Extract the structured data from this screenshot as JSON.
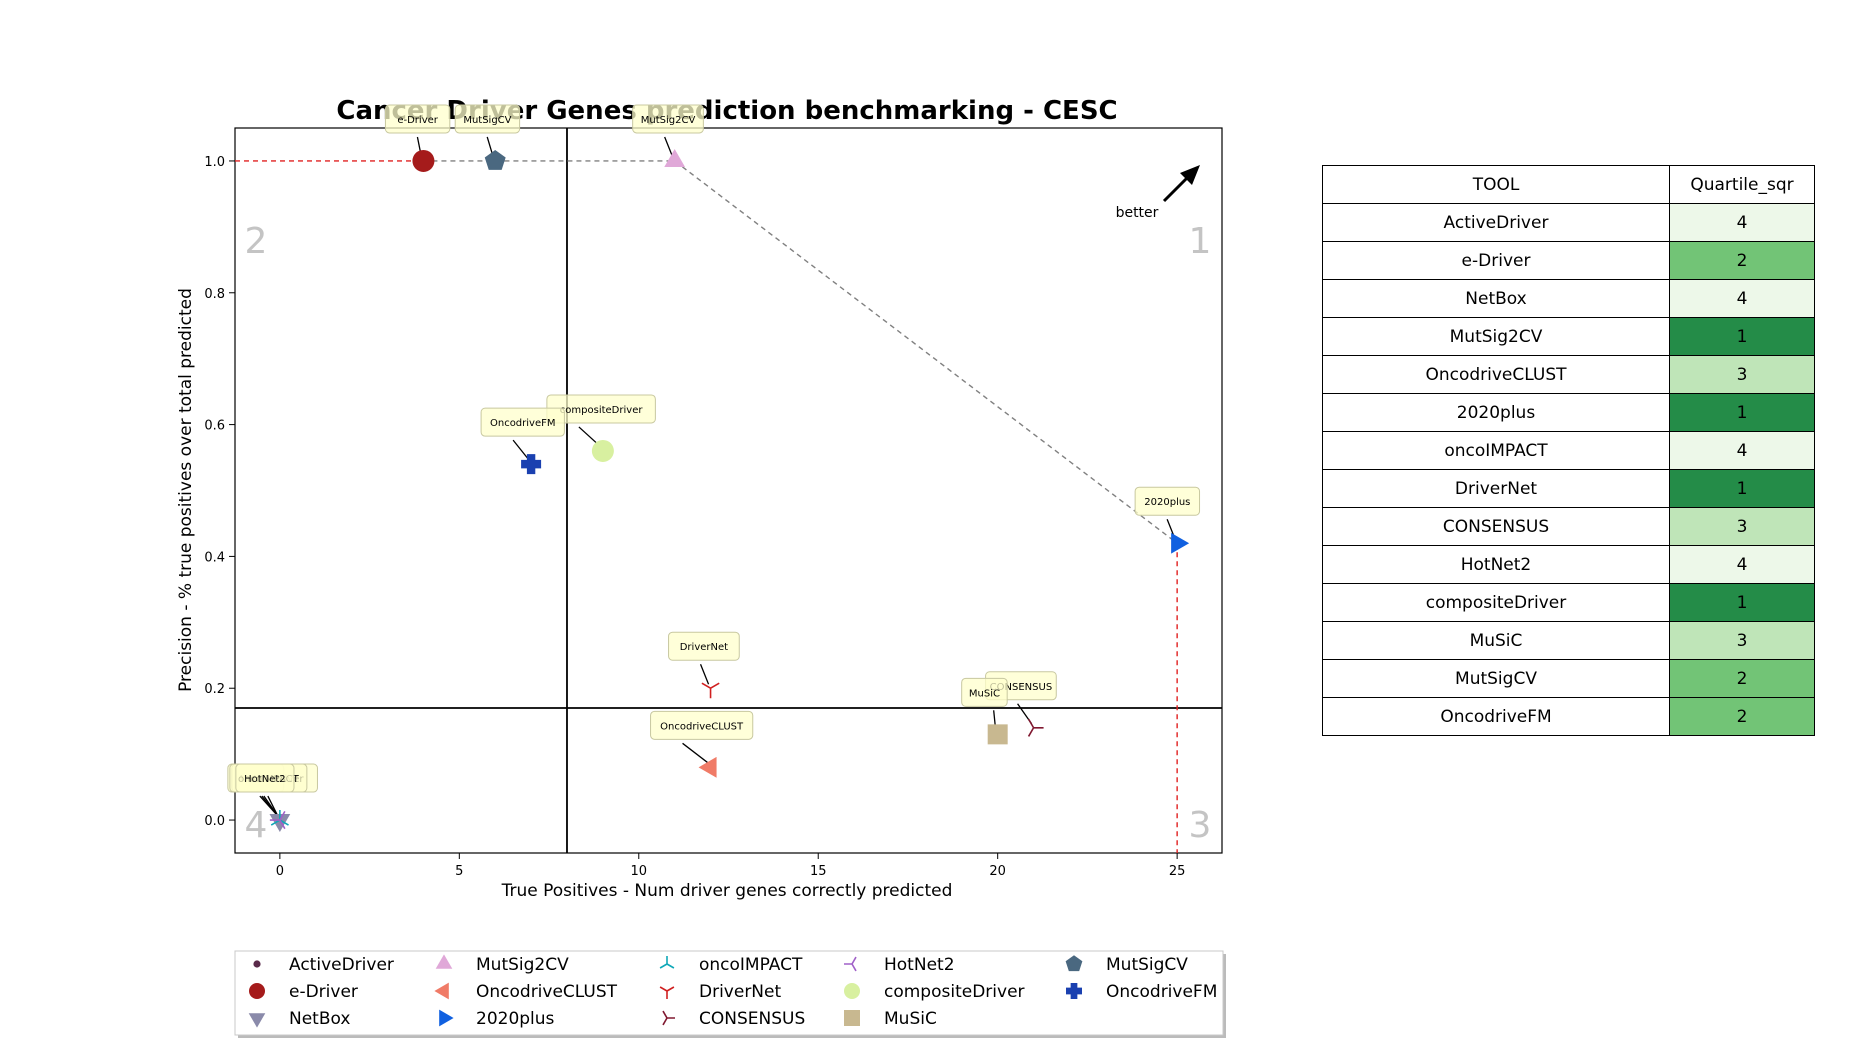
{
  "chart_data": {
    "type": "scatter",
    "title": "Cancer Driver Genes prediction benchmarking - CESC",
    "xlabel": "True Positives - Num driver genes correctly predicted",
    "ylabel": "Precision - % true positives over total predicted",
    "xlim": [
      -1.25,
      26.25
    ],
    "ylim": [
      -0.05,
      1.05
    ],
    "xticks": [
      0,
      5,
      10,
      15,
      20,
      25
    ],
    "yticks": [
      0.0,
      0.2,
      0.4,
      0.6,
      0.8,
      1.0
    ],
    "xtick_labels": [
      "0",
      "5",
      "10",
      "15",
      "20",
      "25"
    ],
    "ytick_labels": [
      "0.0",
      "0.2",
      "0.4",
      "0.6",
      "0.8",
      "1.0"
    ],
    "quadrant_lines": {
      "x": 8,
      "y": 0.17
    },
    "quadrant_labels": [
      "1",
      "2",
      "3",
      "4"
    ],
    "better_label": "better",
    "pareto_front": [
      [
        4,
        1.0
      ],
      [
        6,
        1.0
      ],
      [
        11,
        1.0
      ],
      [
        25,
        0.42
      ]
    ],
    "series": [
      {
        "name": "ActiveDriver",
        "x": 0,
        "y": 0.0,
        "marker": "dot",
        "color": "#5a2a4a"
      },
      {
        "name": "e-Driver",
        "x": 4,
        "y": 1.0,
        "marker": "circle",
        "color": "#a51b1b"
      },
      {
        "name": "NetBox",
        "x": 0,
        "y": 0.0,
        "marker": "triangle-down",
        "color": "#8a8aaa"
      },
      {
        "name": "MutSig2CV",
        "x": 11,
        "y": 1.0,
        "marker": "triangle-up",
        "color": "#e0a8d8"
      },
      {
        "name": "OncodriveCLUST",
        "x": 12,
        "y": 0.08,
        "marker": "triangle-left",
        "color": "#f07b67"
      },
      {
        "name": "2020plus",
        "x": 25,
        "y": 0.42,
        "marker": "triangle-right",
        "color": "#1060e0"
      },
      {
        "name": "oncoIMPACT",
        "x": 0,
        "y": 0.0,
        "marker": "tri-down",
        "color": "#10a8b8"
      },
      {
        "name": "DriverNet",
        "x": 12,
        "y": 0.2,
        "marker": "tri-up",
        "color": "#d02020"
      },
      {
        "name": "CONSENSUS",
        "x": 21,
        "y": 0.14,
        "marker": "tri-left",
        "color": "#801830"
      },
      {
        "name": "HotNet2",
        "x": 0,
        "y": 0.0,
        "marker": "tri-right",
        "color": "#a060c8"
      },
      {
        "name": "compositeDriver",
        "x": 9,
        "y": 0.56,
        "marker": "circle",
        "color": "#d8f0a0"
      },
      {
        "name": "MuSiC",
        "x": 20,
        "y": 0.13,
        "marker": "square",
        "color": "#c8b890"
      },
      {
        "name": "MutSigCV",
        "x": 6,
        "y": 1.0,
        "marker": "pentagon",
        "color": "#4a6880"
      },
      {
        "name": "OncodriveFM",
        "x": 7,
        "y": 0.54,
        "marker": "plus",
        "color": "#1a40b0"
      }
    ],
    "annotations": [
      {
        "text": "e-Driver",
        "x": 4,
        "y": 1.0,
        "dx": -18,
        "dy": -36
      },
      {
        "text": "MutSigCV",
        "x": 6,
        "y": 1.0,
        "dx": -20,
        "dy": -36
      },
      {
        "text": "MutSig2CV",
        "x": 11,
        "y": 1.0,
        "dx": -22,
        "dy": -36
      },
      {
        "text": "compositeDriver",
        "x": 9,
        "y": 0.56,
        "dx": -36,
        "dy": -36
      },
      {
        "text": "OncodriveFM",
        "x": 7,
        "y": 0.54,
        "dx": -30,
        "dy": -36
      },
      {
        "text": "2020plus",
        "x": 25,
        "y": 0.42,
        "dx": -22,
        "dy": -36
      },
      {
        "text": "DriverNet",
        "x": 12,
        "y": 0.2,
        "dx": -22,
        "dy": -36
      },
      {
        "text": "CONSENSUS",
        "x": 21,
        "y": 0.14,
        "dx": -28,
        "dy": -36
      },
      {
        "text": "MuSiC",
        "x": 20,
        "y": 0.13,
        "dx": -16,
        "dy": -36
      },
      {
        "text": "OncodriveCLUST",
        "x": 12,
        "y": 0.08,
        "dx": -40,
        "dy": -36
      },
      {
        "text": "ActiveDriver",
        "x": 0,
        "y": 0.0,
        "dx": -32,
        "dy": -36
      },
      {
        "text": "NetBox",
        "x": 0,
        "y": 0.0,
        "dx": -28,
        "dy": -36
      },
      {
        "text": "oncoIMPACT",
        "x": 0,
        "y": 0.0,
        "dx": -30,
        "dy": -36
      },
      {
        "text": "HotNet2",
        "x": 0,
        "y": 0.0,
        "dx": -24,
        "dy": -36
      }
    ]
  },
  "table": {
    "headers": [
      "TOOL",
      "Quartile_sqr"
    ],
    "rows": [
      {
        "tool": "ActiveDriver",
        "quartile": "4"
      },
      {
        "tool": "e-Driver",
        "quartile": "2"
      },
      {
        "tool": "NetBox",
        "quartile": "4"
      },
      {
        "tool": "MutSig2CV",
        "quartile": "1"
      },
      {
        "tool": "OncodriveCLUST",
        "quartile": "3"
      },
      {
        "tool": "2020plus",
        "quartile": "1"
      },
      {
        "tool": "oncoIMPACT",
        "quartile": "4"
      },
      {
        "tool": "DriverNet",
        "quartile": "1"
      },
      {
        "tool": "CONSENSUS",
        "quartile": "3"
      },
      {
        "tool": "HotNet2",
        "quartile": "4"
      },
      {
        "tool": "compositeDriver",
        "quartile": "1"
      },
      {
        "tool": "MuSiC",
        "quartile": "3"
      },
      {
        "tool": "MutSigCV",
        "quartile": "2"
      },
      {
        "tool": "OncodriveFM",
        "quartile": "2"
      }
    ],
    "quartile_colors": {
      "1": "#248c48",
      "2": "#72c476",
      "3": "#bfe5b8",
      "4": "#edf8e9"
    }
  }
}
